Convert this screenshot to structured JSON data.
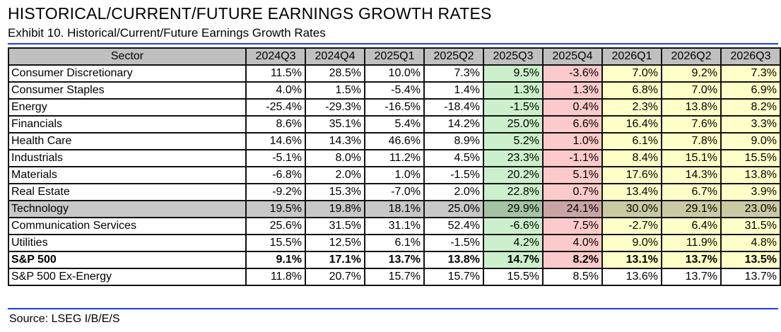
{
  "title": "HISTORICAL/CURRENT/FUTURE EARNINGS GROWTH RATES",
  "subtitle": "Exhibit 10. Historical/Current/Future Earnings Growth Rates",
  "source": "Source: LSEG I/B/E/S",
  "colors": {
    "rule": "#1a3cf0",
    "current_quarter": "#ccf0cc",
    "next_quarter": "#fccaca",
    "future": "#ffffc8",
    "header": "#c0c0c0",
    "highlight_row": "#c8c8c8"
  },
  "table": {
    "headers": [
      "Sector",
      "2024Q3",
      "2024Q4",
      "2025Q1",
      "2025Q2",
      "2025Q3",
      "2025Q4",
      "2026Q1",
      "2026Q2",
      "2026Q3"
    ],
    "rows": [
      {
        "sector": "Consumer Discretionary",
        "values": [
          "11.5%",
          "28.5%",
          "10.0%",
          "7.3%",
          "9.5%",
          "-3.6%",
          "7.0%",
          "9.2%",
          "7.3%"
        ]
      },
      {
        "sector": "Consumer Staples",
        "values": [
          "4.0%",
          "1.5%",
          "-5.4%",
          "1.4%",
          "1.3%",
          "1.3%",
          "6.8%",
          "7.0%",
          "6.9%"
        ]
      },
      {
        "sector": "Energy",
        "values": [
          "-25.4%",
          "-29.3%",
          "-16.5%",
          "-18.4%",
          "-1.5%",
          "0.4%",
          "2.3%",
          "13.8%",
          "8.2%"
        ]
      },
      {
        "sector": "Financials",
        "values": [
          "8.6%",
          "35.1%",
          "5.4%",
          "14.2%",
          "25.0%",
          "6.6%",
          "16.4%",
          "7.6%",
          "3.3%"
        ]
      },
      {
        "sector": "Health Care",
        "values": [
          "14.6%",
          "14.3%",
          "46.6%",
          "8.9%",
          "5.2%",
          "1.0%",
          "6.1%",
          "7.8%",
          "9.0%"
        ]
      },
      {
        "sector": "Industrials",
        "values": [
          "-5.1%",
          "8.0%",
          "11.2%",
          "4.5%",
          "23.3%",
          "-1.1%",
          "8.4%",
          "15.1%",
          "15.5%"
        ]
      },
      {
        "sector": "Materials",
        "values": [
          "-6.8%",
          "2.0%",
          "1.0%",
          "-1.5%",
          "20.2%",
          "5.1%",
          "17.6%",
          "14.3%",
          "13.8%"
        ]
      },
      {
        "sector": "Real Estate",
        "values": [
          "-9.2%",
          "15.3%",
          "-7.0%",
          "2.0%",
          "22.8%",
          "0.7%",
          "13.4%",
          "6.7%",
          "3.9%"
        ]
      },
      {
        "sector": "Technology",
        "values": [
          "19.5%",
          "19.8%",
          "18.1%",
          "25.0%",
          "29.9%",
          "24.1%",
          "30.0%",
          "29.1%",
          "23.0%"
        ]
      },
      {
        "sector": "Communication Services",
        "values": [
          "25.6%",
          "31.5%",
          "31.1%",
          "52.4%",
          "-6.6%",
          "7.5%",
          "-2.7%",
          "6.4%",
          "31.5%"
        ]
      },
      {
        "sector": "Utilities",
        "values": [
          "15.5%",
          "12.5%",
          "6.1%",
          "-1.5%",
          "4.2%",
          "4.0%",
          "9.0%",
          "11.9%",
          "4.8%"
        ]
      },
      {
        "sector": "S&P 500",
        "values": [
          "9.1%",
          "17.1%",
          "13.7%",
          "13.8%",
          "14.7%",
          "8.2%",
          "13.1%",
          "13.7%",
          "13.5%"
        ]
      },
      {
        "sector": "S&P 500 Ex-Energy",
        "values": [
          "11.8%",
          "20.7%",
          "15.7%",
          "15.7%",
          "15.5%",
          "8.5%",
          "13.6%",
          "13.7%",
          "13.7%"
        ]
      }
    ]
  }
}
